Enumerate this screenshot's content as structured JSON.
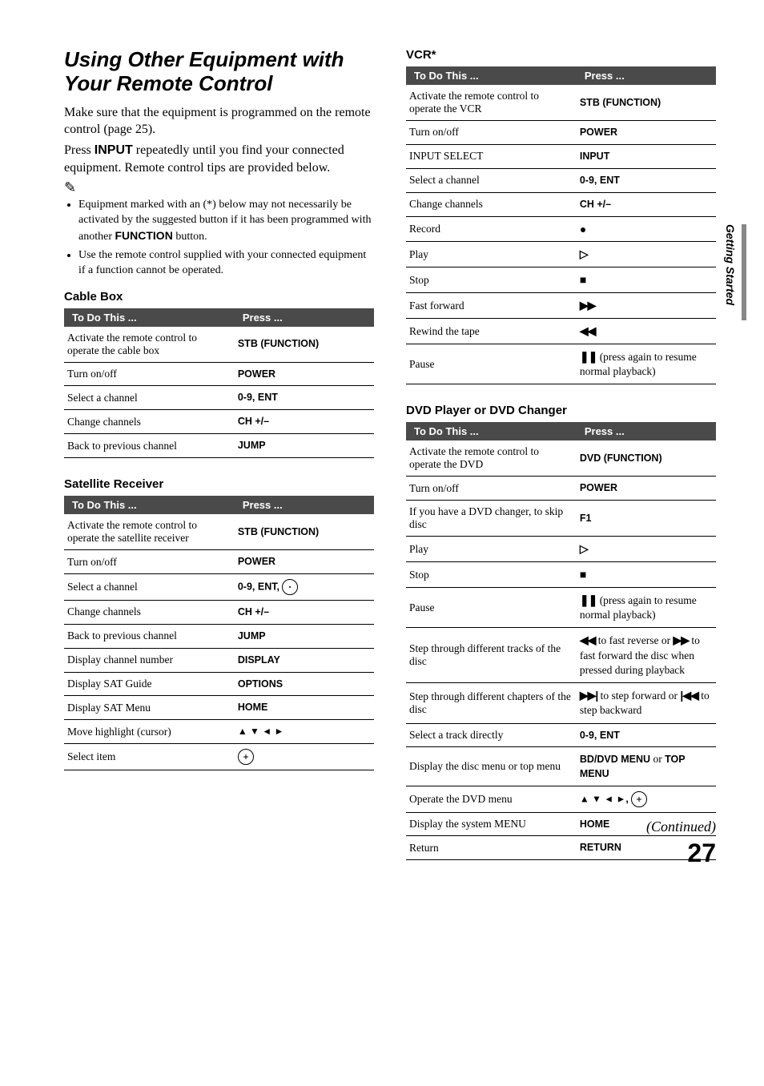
{
  "sideTab": "Getting Started",
  "footer": {
    "continued": "(Continued)",
    "page": "27"
  },
  "left": {
    "title": "Using Other Equipment with Your Remote Control",
    "para1a": "Make sure that the equipment is programmed on the remote control (page 25).",
    "para1b_pre": "Press ",
    "para1b_bold": "INPUT",
    "para1b_post": " repeatedly until you find your connected equipment. Remote control tips are provided below.",
    "notesIcon": "✎",
    "note1_pre": "Equipment marked with an (*) below may not necessarily be activated by the suggested button if it has been programmed with another ",
    "note1_bold": "FUNCTION",
    "note1_post": " button.",
    "note2": "Use the remote control supplied with your connected equipment if a function cannot be operated.",
    "cableBox": {
      "title": "Cable Box",
      "th1": "To Do This ...",
      "th2": "Press ...",
      "rows": [
        {
          "a": "Activate the remote control to operate the cable box",
          "p": "STB (FUNCTION)"
        },
        {
          "a": "Turn on/off",
          "p": "POWER"
        },
        {
          "a": "Select a channel",
          "p": "0-9, ENT"
        },
        {
          "a": "Change channels",
          "p": "CH +/–"
        },
        {
          "a": "Back to previous channel",
          "p": "JUMP"
        }
      ]
    },
    "sat": {
      "title": "Satellite Receiver",
      "th1": "To Do This ...",
      "th2": "Press ...",
      "rows": [
        {
          "a": "Activate the remote control to operate the satellite receiver",
          "p": "STB (FUNCTION)"
        },
        {
          "a": "Turn on/off",
          "p": "POWER"
        },
        {
          "a": "Select a channel",
          "p": "0-9, ENT, ",
          "extra": "circle-dot"
        },
        {
          "a": "Change channels",
          "p": "CH +/–"
        },
        {
          "a": "Back to previous channel",
          "p": "JUMP"
        },
        {
          "a": "Display channel number",
          "p": "DISPLAY"
        },
        {
          "a": "Display SAT Guide",
          "p": "OPTIONS"
        },
        {
          "a": "Display SAT Menu",
          "p": "HOME"
        },
        {
          "a": "Move highlight (cursor)",
          "p": "",
          "extra": "arrows"
        },
        {
          "a": "Select item",
          "p": "",
          "extra": "circle-plus"
        }
      ]
    }
  },
  "right": {
    "vcr": {
      "title": "VCR*",
      "th1": "To Do This ...",
      "th2": "Press ...",
      "rows": [
        {
          "a": "Activate the remote control to operate the VCR",
          "p": "STB (FUNCTION)"
        },
        {
          "a": "Turn on/off",
          "p": "POWER"
        },
        {
          "a": "INPUT SELECT",
          "p": "INPUT"
        },
        {
          "a": "Select a channel",
          "p": "0-9, ENT"
        },
        {
          "a": "Change channels",
          "p": "CH +/–"
        },
        {
          "a": "Record",
          "sym": "●"
        },
        {
          "a": "Play",
          "sym": "▷"
        },
        {
          "a": "Stop",
          "sym": "■"
        },
        {
          "a": "Fast forward",
          "sym": "▶▶"
        },
        {
          "a": "Rewind the tape",
          "sym": "◀◀"
        },
        {
          "a": "Pause",
          "sym": "❚❚",
          "post": " (press again to resume normal playback)"
        }
      ]
    },
    "dvd": {
      "title": "DVD Player or DVD Changer",
      "th1": "To Do This ...",
      "th2": "Press ...",
      "rows": [
        {
          "a": "Activate the remote control to operate the DVD",
          "p": "DVD (FUNCTION)"
        },
        {
          "a": "Turn on/off",
          "p": "POWER"
        },
        {
          "a": "If you have a DVD changer, to skip disc",
          "p": "F1"
        },
        {
          "a": "Play",
          "sym": "▷"
        },
        {
          "a": "Stop",
          "sym": "■"
        },
        {
          "a": "Pause",
          "sym": "❚❚",
          "post": " (press again to resume normal playback)"
        },
        {
          "a": "Step through different tracks of the disc",
          "sym": "◀◀",
          "post": " to fast reverse or ",
          "sym2": "▶▶",
          "post2": " to fast forward the disc when pressed during playback"
        },
        {
          "a": "Step through different chapters of the disc",
          "sym": "▶▶|",
          "post": " to step forward or ",
          "sym2": "|◀◀",
          "post2": " to step backward"
        },
        {
          "a": "Select a track directly",
          "p": "0-9, ENT"
        },
        {
          "a": "Display the disc menu or top menu",
          "p": "BD/DVD MENU ",
          "normal": "or ",
          "p2": "TOP MENU"
        },
        {
          "a": "Operate the DVD menu",
          "extra": "arrows-plus"
        },
        {
          "a": "Display the system MENU",
          "p": "HOME"
        },
        {
          "a": "Return",
          "p": "RETURN"
        }
      ]
    }
  }
}
